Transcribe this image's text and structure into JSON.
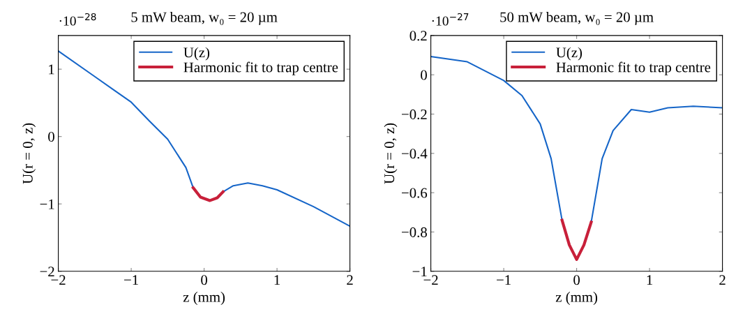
{
  "chart_data": [
    {
      "type": "line",
      "title": "5 mW beam, w₀ = 20 µm",
      "xlabel": "z (mm)",
      "ylabel": "U(r = 0, z)",
      "annotations": [
        "·10$^{−28}$"
      ],
      "xlim": [
        -2,
        2
      ],
      "xticks": [
        -2,
        -1,
        0,
        1,
        2
      ],
      "ylim": [
        -2,
        1.5
      ],
      "yticks": [
        -2,
        -1,
        0,
        1
      ],
      "grid": false,
      "legend": "top right",
      "series": [
        {
          "name": "U(z)",
          "color": "#1565c8",
          "x": [
            -2,
            -1.5,
            -1.25,
            -1,
            -0.75,
            -0.5,
            -0.25,
            -0.15,
            -0.05,
            0.08,
            0.18,
            0.26,
            0.4,
            0.6,
            0.8,
            1,
            1.5,
            2
          ],
          "values": [
            1.27,
            0.89,
            0.7,
            0.51,
            0.23,
            -0.04,
            -0.46,
            -0.76,
            null,
            null,
            null,
            -0.82,
            -0.73,
            -0.69,
            -0.73,
            -0.79,
            -1.04,
            -1.33
          ]
        },
        {
          "name": "Harmonic fit to trap centre",
          "color": "#c8203a",
          "x": [
            -0.15,
            -0.05,
            0.08,
            0.18,
            0.26
          ],
          "values": [
            -0.76,
            -0.9,
            -0.95,
            -0.91,
            -0.82
          ]
        }
      ]
    },
    {
      "type": "line",
      "title": "50 mW beam, w₀ = 20 µm",
      "xlabel": "z (mm)",
      "ylabel": "U(r = 0, z)",
      "annotations": [
        "·10$^{−27}$"
      ],
      "xlim": [
        -2,
        2
      ],
      "xticks": [
        -2,
        -1,
        0,
        1,
        2
      ],
      "ylim": [
        -1,
        0.2
      ],
      "yticks": [
        -1,
        -0.8,
        -0.6,
        -0.4,
        -0.2,
        0,
        0.2
      ],
      "grid": false,
      "legend": "top right",
      "series": [
        {
          "name": "U(z)",
          "color": "#1565c8",
          "x": [
            -2,
            -1.5,
            -1,
            -0.75,
            -0.5,
            -0.35,
            -0.2,
            -0.1,
            0,
            0.1,
            0.2,
            0.35,
            0.5,
            0.75,
            1,
            1.25,
            1.6,
            2
          ],
          "values": [
            0.093,
            0.066,
            -0.029,
            -0.106,
            -0.25,
            -0.427,
            -0.74,
            null,
            null,
            null,
            -0.75,
            -0.427,
            -0.284,
            -0.177,
            -0.19,
            -0.168,
            -0.16,
            -0.168
          ]
        },
        {
          "name": "Harmonic fit to trap centre",
          "color": "#c8203a",
          "x": [
            -0.2,
            -0.1,
            0,
            0.1,
            0.2
          ],
          "values": [
            -0.74,
            -0.866,
            -0.94,
            -0.866,
            -0.75
          ]
        }
      ]
    }
  ]
}
